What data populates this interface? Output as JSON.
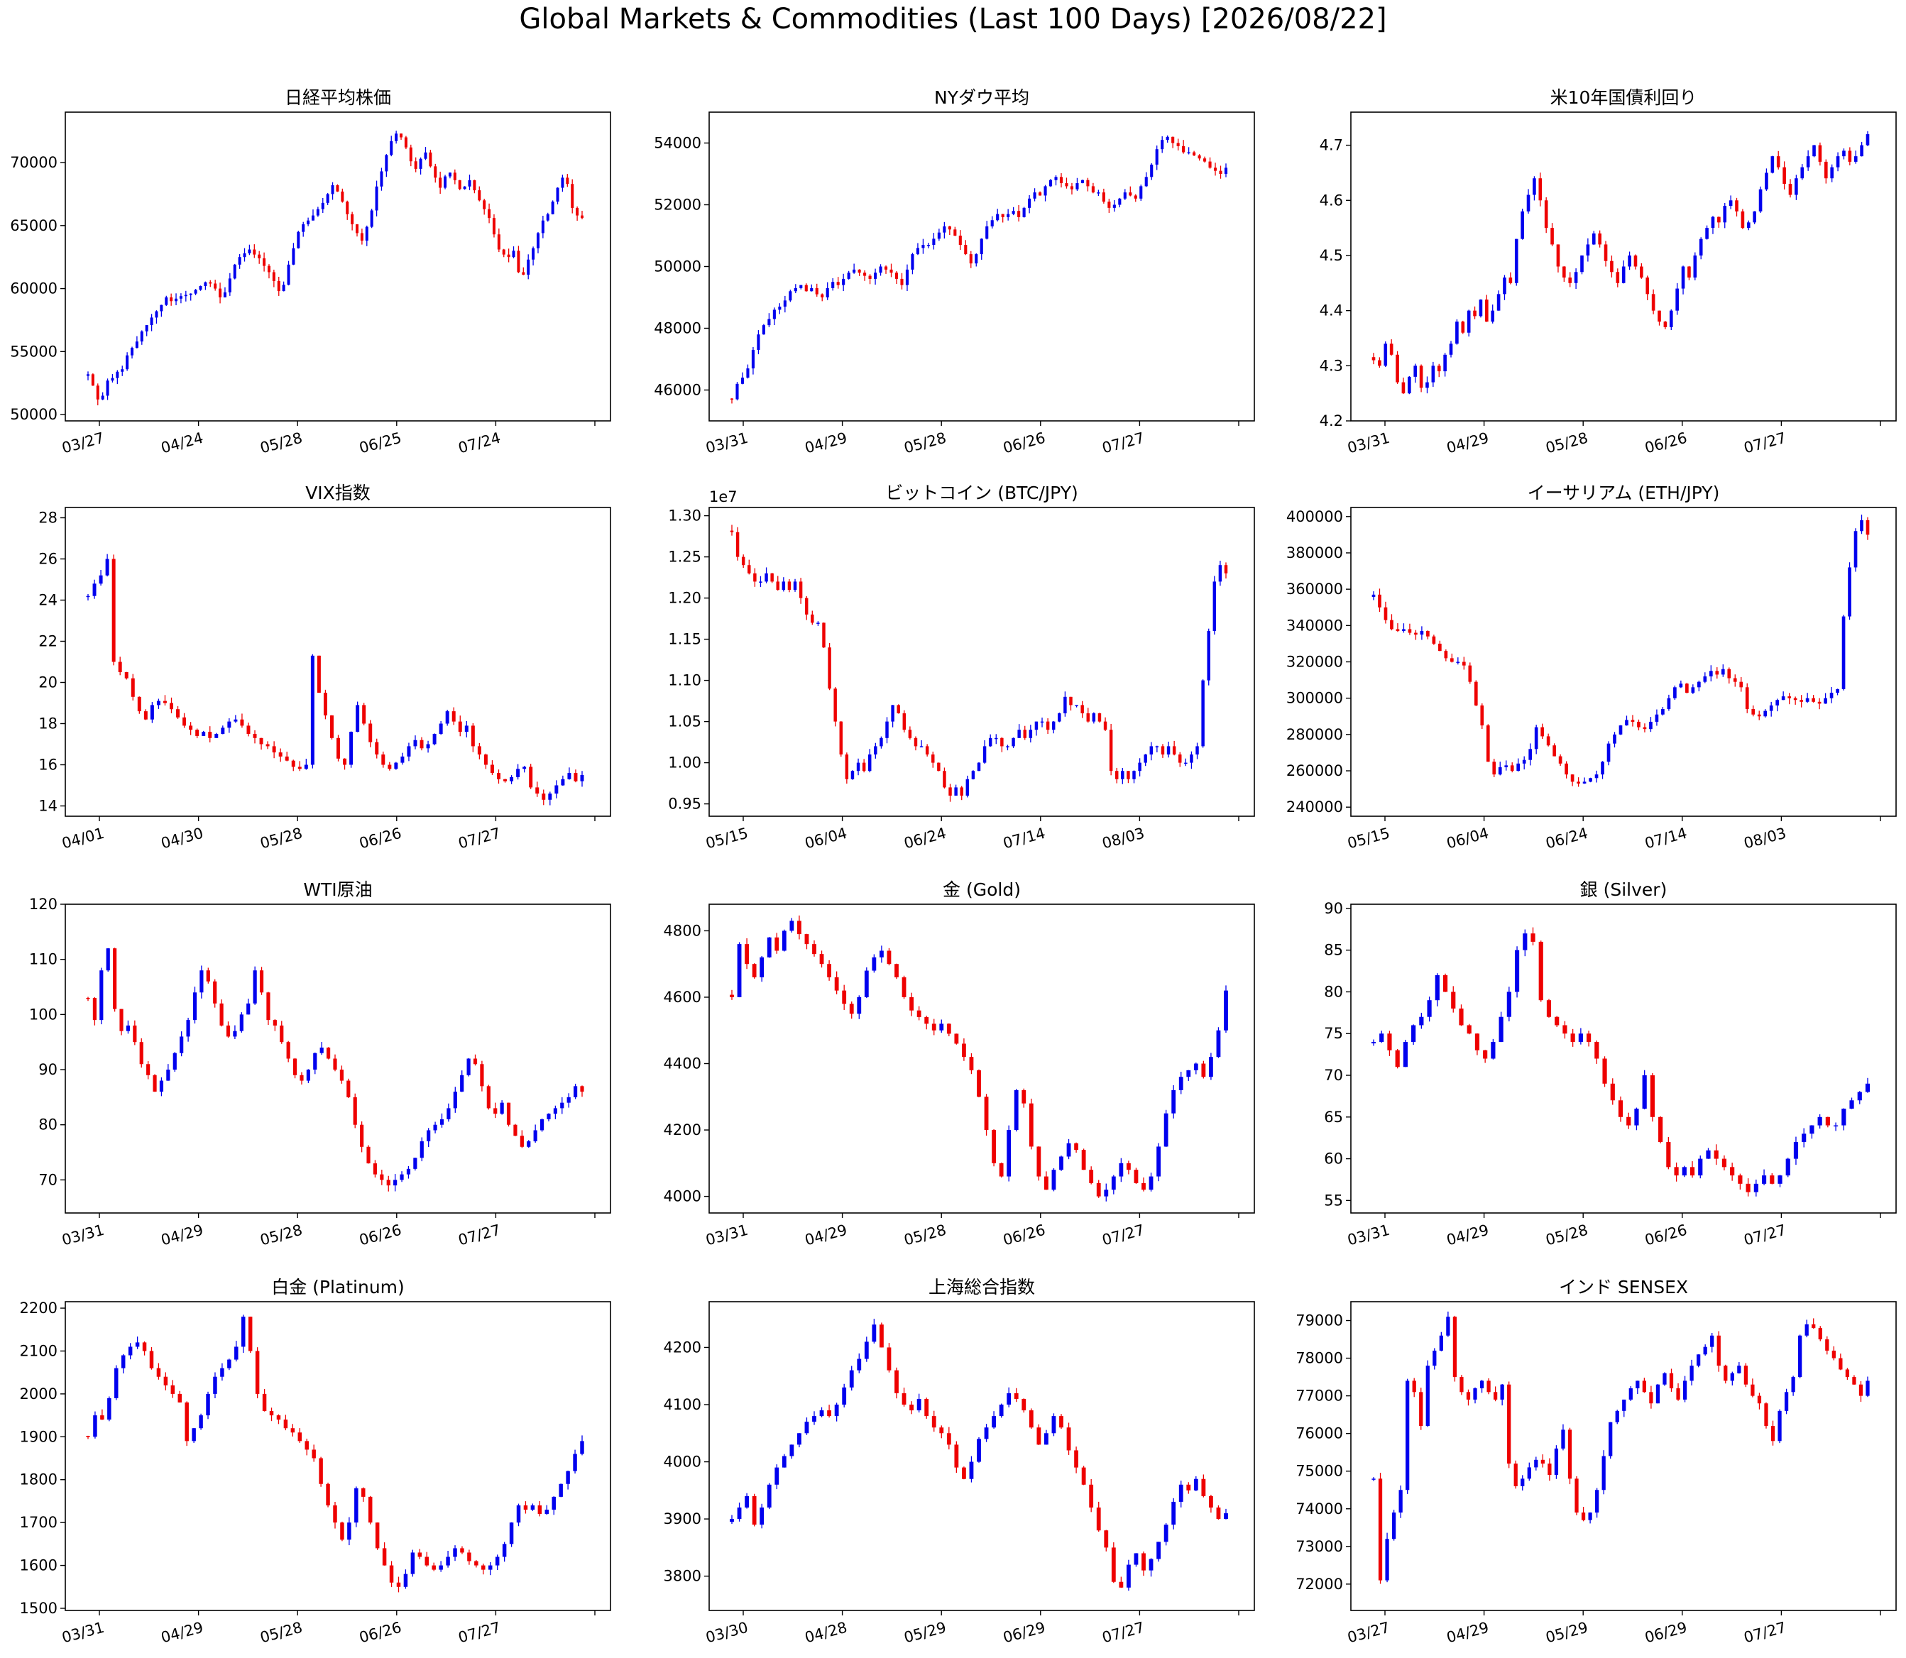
{
  "figure": {
    "title": "Global Markets & Commodities (Last 100 Days) [2026/08/22]"
  },
  "colors": {
    "up": "#0000ee",
    "down": "#ee0000",
    "axis": "#000000"
  },
  "chart_data": [
    {
      "type": "candlestick",
      "title": "日経平均株価",
      "ylim": [
        49500,
        74000
      ],
      "yticks": [
        50000,
        55000,
        60000,
        65000,
        70000
      ],
      "ytick_labels": [
        "50000",
        "55000",
        "60000",
        "65000",
        "70000"
      ],
      "xticks": [
        "03/27",
        "04/24",
        "05/28",
        "06/25",
        "07/24"
      ],
      "n": 100,
      "close": [
        53200,
        52300,
        51200,
        51500,
        52700,
        52900,
        53400,
        53600,
        54700,
        55300,
        55800,
        56600,
        57100,
        57700,
        58200,
        58700,
        59300,
        59000,
        59200,
        59400,
        59500,
        59600,
        59900,
        60200,
        60500,
        60400,
        60000,
        59300,
        59700,
        60800,
        61900,
        62500,
        62800,
        63100,
        62700,
        62400,
        61800,
        61300,
        60600,
        59800,
        60300,
        61900,
        63200,
        64500,
        65100,
        65400,
        65800,
        66300,
        66800,
        67500,
        68200,
        67700,
        66900,
        65900,
        65100,
        64400,
        63800,
        64900,
        66200,
        68100,
        69300,
        70600,
        71700,
        72300,
        72000,
        71200,
        70100,
        69500,
        70300,
        70800,
        69700,
        68800,
        68000,
        68900,
        69200,
        68600,
        67900,
        68100,
        68600,
        67800,
        67000,
        66300,
        65600,
        64300,
        63100,
        62700,
        62500,
        63000,
        61300,
        61100,
        62300,
        63200,
        64400,
        65400,
        65900,
        66900,
        68000,
        68800,
        68300,
        66400,
        65800,
        65600
      ]
    },
    {
      "type": "candlestick",
      "title": "NYダウ平均",
      "ylim": [
        45000,
        55000
      ],
      "yticks": [
        46000,
        48000,
        50000,
        52000,
        54000
      ],
      "ytick_labels": [
        "46000",
        "48000",
        "50000",
        "52000",
        "54000"
      ],
      "xticks": [
        "03/31",
        "04/29",
        "05/28",
        "06/26",
        "07/27"
      ],
      "n": 100,
      "close": [
        45700,
        46200,
        46400,
        46700,
        47300,
        47800,
        48100,
        48300,
        48600,
        48700,
        48900,
        49200,
        49300,
        49400,
        49200,
        49300,
        49100,
        49000,
        49300,
        49500,
        49400,
        49600,
        49800,
        49900,
        49800,
        49700,
        49600,
        49800,
        50000,
        49900,
        49800,
        49600,
        49400,
        49900,
        50400,
        50600,
        50700,
        50700,
        50900,
        51100,
        51300,
        51200,
        51000,
        50700,
        50400,
        50100,
        50400,
        50900,
        51300,
        51500,
        51700,
        51600,
        51700,
        51800,
        51600,
        51900,
        52200,
        52400,
        52300,
        52600,
        52800,
        52900,
        52700,
        52600,
        52500,
        52700,
        52800,
        52600,
        52400,
        52400,
        52100,
        51900,
        52000,
        52200,
        52400,
        52300,
        52200,
        52600,
        52900,
        53300,
        53800,
        54100,
        54200,
        54000,
        53900,
        53700,
        53700,
        53600,
        53500,
        53400,
        53200,
        53100,
        53000,
        53200
      ]
    },
    {
      "type": "candlestick",
      "title": "米10年国債利回り",
      "ylim": [
        4.2,
        4.76
      ],
      "yticks": [
        4.2,
        4.3,
        4.4,
        4.5,
        4.6,
        4.7
      ],
      "ytick_labels": [
        "4.2",
        "4.3",
        "4.4",
        "4.5",
        "4.6",
        "4.7"
      ],
      "xticks": [
        "03/31",
        "04/29",
        "05/28",
        "06/26",
        "07/27"
      ],
      "n": 100,
      "close": [
        4.31,
        4.3,
        4.34,
        4.32,
        4.27,
        4.25,
        4.28,
        4.3,
        4.26,
        4.27,
        4.3,
        4.29,
        4.32,
        4.34,
        4.38,
        4.36,
        4.4,
        4.39,
        4.42,
        4.38,
        4.4,
        4.43,
        4.46,
        4.45,
        4.53,
        4.58,
        4.61,
        4.64,
        4.6,
        4.55,
        4.52,
        4.48,
        4.46,
        4.45,
        4.47,
        4.5,
        4.52,
        4.54,
        4.52,
        4.49,
        4.47,
        4.45,
        4.48,
        4.5,
        4.48,
        4.46,
        4.43,
        4.4,
        4.38,
        4.37,
        4.4,
        4.44,
        4.48,
        4.46,
        4.5,
        4.53,
        4.55,
        4.57,
        4.56,
        4.59,
        4.6,
        4.58,
        4.55,
        4.56,
        4.58,
        4.62,
        4.65,
        4.68,
        4.66,
        4.63,
        4.61,
        4.64,
        4.66,
        4.68,
        4.7,
        4.67,
        4.64,
        4.66,
        4.68,
        4.69,
        4.67,
        4.68,
        4.7,
        4.72
      ]
    },
    {
      "type": "candlestick",
      "title": "VIX指数",
      "ylim": [
        13.5,
        28.5
      ],
      "yticks": [
        14,
        16,
        18,
        20,
        22,
        24,
        26,
        28
      ],
      "ytick_labels": [
        "14",
        "16",
        "18",
        "20",
        "22",
        "24",
        "26",
        "28"
      ],
      "xticks": [
        "04/01",
        "04/30",
        "05/28",
        "06/26",
        "07/27"
      ],
      "n": 100,
      "close": [
        24.2,
        24.8,
        25.2,
        26.0,
        21.0,
        20.5,
        20.2,
        19.3,
        18.6,
        18.2,
        18.9,
        19.1,
        19.0,
        18.7,
        18.3,
        17.9,
        17.7,
        17.4,
        17.6,
        17.3,
        17.5,
        17.8,
        18.1,
        18.2,
        17.9,
        17.5,
        17.3,
        17.0,
        16.9,
        16.6,
        16.4,
        16.2,
        15.9,
        15.8,
        16.0,
        21.3,
        19.5,
        18.4,
        17.3,
        16.3,
        16.0,
        17.6,
        18.9,
        18.0,
        17.1,
        16.5,
        16.0,
        15.8,
        16.1,
        16.4,
        16.9,
        17.2,
        16.8,
        17.0,
        17.5,
        18.0,
        18.6,
        18.1,
        17.6,
        17.9,
        16.9,
        16.5,
        16.0,
        15.6,
        15.3,
        15.2,
        15.4,
        15.8,
        15.9,
        14.9,
        14.6,
        14.3,
        14.6,
        15.0,
        15.3,
        15.6,
        15.2,
        15.5
      ]
    },
    {
      "type": "candlestick",
      "title": "ビットコイン (BTC/JPY)",
      "offset_label": "1e7",
      "ylim": [
        0.935,
        1.31
      ],
      "yticks": [
        0.95,
        1.0,
        1.05,
        1.1,
        1.15,
        1.2,
        1.25,
        1.3
      ],
      "ytick_labels": [
        "0.95",
        "1.00",
        "1.05",
        "1.10",
        "1.15",
        "1.20",
        "1.25",
        "1.30"
      ],
      "xticks": [
        "05/15",
        "06/04",
        "06/24",
        "07/14",
        "08/03"
      ],
      "n": 100,
      "close": [
        1.28,
        1.25,
        1.24,
        1.23,
        1.22,
        1.22,
        1.23,
        1.22,
        1.21,
        1.22,
        1.21,
        1.22,
        1.2,
        1.18,
        1.17,
        1.17,
        1.14,
        1.09,
        1.05,
        1.01,
        0.98,
        0.99,
        1.0,
        0.99,
        1.01,
        1.02,
        1.03,
        1.05,
        1.07,
        1.06,
        1.04,
        1.03,
        1.02,
        1.02,
        1.01,
        1.0,
        0.99,
        0.97,
        0.96,
        0.97,
        0.96,
        0.98,
        0.99,
        1.0,
        1.02,
        1.03,
        1.03,
        1.02,
        1.02,
        1.03,
        1.04,
        1.03,
        1.04,
        1.05,
        1.05,
        1.04,
        1.05,
        1.06,
        1.08,
        1.07,
        1.07,
        1.06,
        1.05,
        1.06,
        1.05,
        1.04,
        0.99,
        0.98,
        0.99,
        0.98,
        0.99,
        1.0,
        1.01,
        1.02,
        1.02,
        1.01,
        1.02,
        1.01,
        1.0,
        1.0,
        1.01,
        1.02,
        1.1,
        1.16,
        1.22,
        1.24,
        1.23
      ]
    },
    {
      "type": "candlestick",
      "title": "イーサリアム (ETH/JPY)",
      "ylim": [
        235000,
        405000
      ],
      "yticks": [
        240000,
        260000,
        280000,
        300000,
        320000,
        340000,
        360000,
        380000,
        400000
      ],
      "ytick_labels": [
        "240000",
        "260000",
        "280000",
        "300000",
        "320000",
        "340000",
        "360000",
        "380000",
        "400000"
      ],
      "xticks": [
        "05/15",
        "06/04",
        "06/24",
        "07/14",
        "08/03"
      ],
      "n": 100,
      "close": [
        357000,
        350000,
        343000,
        338000,
        337000,
        338000,
        336000,
        335000,
        337000,
        334000,
        330000,
        326000,
        322000,
        320000,
        320000,
        318000,
        309000,
        296000,
        285000,
        265000,
        258000,
        262000,
        263000,
        260000,
        264000,
        266000,
        272000,
        284000,
        279000,
        274000,
        268000,
        264000,
        258000,
        254000,
        253000,
        254000,
        256000,
        258000,
        265000,
        275000,
        280000,
        285000,
        288000,
        287000,
        284000,
        283000,
        287000,
        291000,
        294000,
        300000,
        306000,
        308000,
        303000,
        306000,
        309000,
        312000,
        315000,
        313000,
        316000,
        311000,
        309000,
        306000,
        294000,
        291000,
        290000,
        293000,
        296000,
        299000,
        301000,
        300000,
        299000,
        298000,
        300000,
        298000,
        297000,
        300000,
        303000,
        305000,
        345000,
        372000,
        392000,
        398000,
        390000
      ]
    },
    {
      "type": "candlestick",
      "title": "WTI原油",
      "ylim": [
        64,
        120
      ],
      "yticks": [
        70,
        80,
        90,
        100,
        110,
        120
      ],
      "ytick_labels": [
        "70",
        "80",
        "90",
        "100",
        "110",
        "120"
      ],
      "xticks": [
        "03/31",
        "04/29",
        "05/28",
        "06/26",
        "07/27"
      ],
      "n": 100,
      "close": [
        103,
        99,
        108,
        112,
        101,
        97,
        98,
        95,
        91,
        89,
        86,
        88,
        90,
        93,
        96,
        99,
        104,
        108,
        106,
        102,
        98,
        96,
        97,
        100,
        102,
        108,
        104,
        99,
        98,
        95,
        92,
        89,
        88,
        90,
        93,
        94,
        92,
        90,
        88,
        85,
        80,
        76,
        73,
        71,
        70,
        69,
        70,
        71,
        72,
        74,
        77,
        79,
        80,
        81,
        83,
        86,
        89,
        92,
        91,
        87,
        83,
        82,
        84,
        80,
        78,
        76,
        77,
        79,
        81,
        82,
        83,
        84,
        85,
        87,
        86
      ]
    },
    {
      "type": "candlestick",
      "title": "金 (Gold)",
      "ylim": [
        3950,
        4880
      ],
      "yticks": [
        4000,
        4200,
        4400,
        4600,
        4800
      ],
      "ytick_labels": [
        "4000",
        "4200",
        "4400",
        "4600",
        "4800"
      ],
      "xticks": [
        "03/31",
        "04/29",
        "05/28",
        "06/26",
        "07/27"
      ],
      "n": 100,
      "close": [
        4600,
        4760,
        4700,
        4660,
        4720,
        4780,
        4740,
        4800,
        4830,
        4790,
        4760,
        4730,
        4700,
        4660,
        4620,
        4580,
        4550,
        4600,
        4680,
        4720,
        4740,
        4700,
        4660,
        4600,
        4560,
        4540,
        4520,
        4500,
        4520,
        4490,
        4460,
        4420,
        4380,
        4300,
        4200,
        4100,
        4060,
        4200,
        4320,
        4280,
        4150,
        4060,
        4020,
        4080,
        4120,
        4160,
        4140,
        4080,
        4040,
        4000,
        4020,
        4060,
        4100,
        4080,
        4040,
        4020,
        4060,
        4150,
        4250,
        4320,
        4360,
        4380,
        4400,
        4360,
        4420,
        4500,
        4620
      ]
    },
    {
      "type": "candlestick",
      "title": "銀 (Silver)",
      "ylim": [
        53.5,
        90.5
      ],
      "yticks": [
        55,
        60,
        65,
        70,
        75,
        80,
        85,
        90
      ],
      "ytick_labels": [
        "55",
        "60",
        "65",
        "70",
        "75",
        "80",
        "85",
        "90"
      ],
      "xticks": [
        "03/31",
        "04/29",
        "05/28",
        "06/26",
        "07/27"
      ],
      "n": 100,
      "close": [
        74,
        75,
        73,
        71,
        74,
        76,
        77,
        79,
        82,
        80,
        78,
        76,
        75,
        73,
        72,
        74,
        77,
        80,
        85,
        87,
        86,
        79,
        77,
        76,
        75,
        74,
        75,
        74,
        72,
        69,
        67,
        65,
        64,
        66,
        70,
        65,
        62,
        59,
        58,
        59,
        58,
        60,
        61,
        60,
        59,
        58,
        57,
        56,
        57,
        58,
        57,
        58,
        60,
        62,
        63,
        64,
        65,
        64,
        64,
        66,
        67,
        68,
        69
      ]
    },
    {
      "type": "candlestick",
      "title": "白金 (Platinum)",
      "ylim": [
        1495,
        2215
      ],
      "yticks": [
        1500,
        1600,
        1700,
        1800,
        1900,
        2000,
        2100,
        2200
      ],
      "ytick_labels": [
        "1500",
        "1600",
        "1700",
        "1800",
        "1900",
        "2000",
        "2100",
        "2200"
      ],
      "xticks": [
        "03/31",
        "04/29",
        "05/28",
        "06/26",
        "07/27"
      ],
      "n": 100,
      "close": [
        1900,
        1950,
        1940,
        1990,
        2060,
        2090,
        2110,
        2120,
        2100,
        2060,
        2040,
        2020,
        2000,
        1980,
        1890,
        1920,
        1950,
        2000,
        2040,
        2060,
        2080,
        2110,
        2180,
        2100,
        2000,
        1960,
        1950,
        1940,
        1920,
        1910,
        1890,
        1870,
        1850,
        1790,
        1740,
        1700,
        1660,
        1700,
        1780,
        1760,
        1700,
        1640,
        1600,
        1560,
        1550,
        1580,
        1630,
        1620,
        1600,
        1590,
        1600,
        1620,
        1640,
        1630,
        1610,
        1600,
        1590,
        1600,
        1620,
        1650,
        1700,
        1740,
        1730,
        1740,
        1720,
        1730,
        1760,
        1790,
        1820,
        1860,
        1890
      ]
    },
    {
      "type": "candlestick",
      "title": "上海総合指数",
      "ylim": [
        3740,
        4280
      ],
      "yticks": [
        3800,
        3900,
        4000,
        4100,
        4200
      ],
      "ytick_labels": [
        "3800",
        "3900",
        "4000",
        "4100",
        "4200"
      ],
      "xticks": [
        "03/30",
        "04/28",
        "05/29",
        "06/29",
        "07/27"
      ],
      "n": 100,
      "close": [
        3900,
        3920,
        3940,
        3890,
        3920,
        3960,
        3990,
        4010,
        4030,
        4050,
        4070,
        4080,
        4090,
        4080,
        4100,
        4130,
        4160,
        4180,
        4210,
        4240,
        4200,
        4160,
        4120,
        4100,
        4090,
        4110,
        4080,
        4060,
        4050,
        4030,
        3990,
        3970,
        4000,
        4040,
        4060,
        4080,
        4100,
        4120,
        4110,
        4090,
        4060,
        4030,
        4050,
        4080,
        4060,
        4020,
        3990,
        3960,
        3920,
        3880,
        3850,
        3790,
        3780,
        3820,
        3840,
        3810,
        3830,
        3860,
        3890,
        3930,
        3960,
        3950,
        3970,
        3940,
        3920,
        3900,
        3910
      ]
    },
    {
      "type": "candlestick",
      "title": "インド SENSEX",
      "ylim": [
        71300,
        79500
      ],
      "yticks": [
        72000,
        73000,
        74000,
        75000,
        76000,
        77000,
        78000,
        79000
      ],
      "ytick_labels": [
        "72000",
        "73000",
        "74000",
        "75000",
        "76000",
        "77000",
        "78000",
        "79000"
      ],
      "xticks": [
        "03/27",
        "04/29",
        "05/29",
        "06/29",
        "07/27"
      ],
      "n": 100,
      "close": [
        74800,
        72100,
        73200,
        73900,
        74500,
        77400,
        77100,
        76200,
        77800,
        78200,
        78600,
        79100,
        77500,
        77100,
        76900,
        77200,
        77400,
        77100,
        76900,
        77300,
        75200,
        74600,
        74800,
        75100,
        75300,
        75200,
        74900,
        75600,
        76100,
        74800,
        73900,
        73700,
        73900,
        74500,
        75400,
        76300,
        76600,
        76900,
        77200,
        77400,
        77100,
        76800,
        77300,
        77600,
        77200,
        76900,
        77400,
        77800,
        78100,
        78300,
        78600,
        77800,
        77400,
        77600,
        77800,
        77300,
        77000,
        76800,
        76200,
        75800,
        76600,
        77100,
        77500,
        78600,
        78900,
        78800,
        78500,
        78200,
        78000,
        77700,
        77500,
        77300,
        77000,
        77400
      ]
    }
  ]
}
